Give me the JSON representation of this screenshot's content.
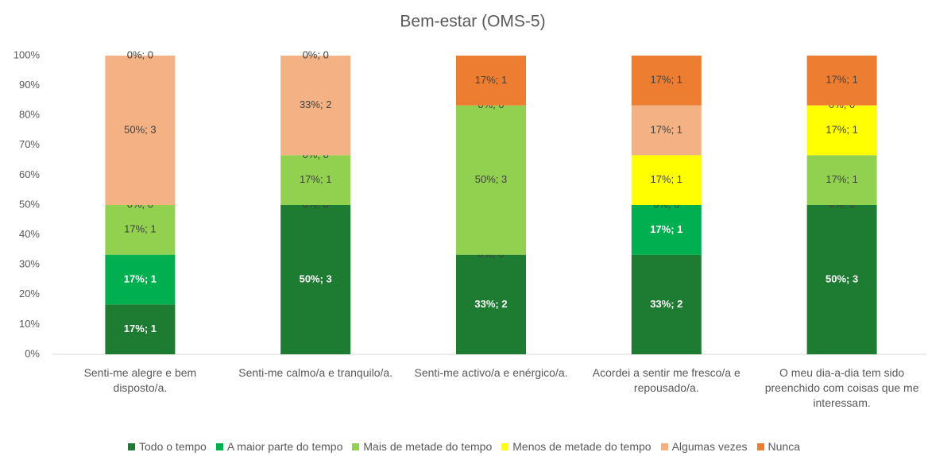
{
  "chart_data": {
    "type": "stacked_bar",
    "title": "Bem-estar (OMS-5)",
    "categories": [
      "Senti-me alegre e bem disposto/a.",
      "Senti-me calmo/a e tranquilo/a.",
      "Senti-me activo/a e enérgico/a.",
      "Acordei a sentir  me fresco/a e repousado/a.",
      "O meu dia-a-dia tem sido preenchido com coisas que me interessam."
    ],
    "series": [
      {
        "name": "Todo o tempo",
        "color": "#1e7b32",
        "values": [
          16.67,
          50,
          33.33,
          33.33,
          50
        ],
        "value_labels": [
          "17%; 1",
          "50%; 3",
          "33%; 2",
          "33%; 2",
          "50%; 3"
        ]
      },
      {
        "name": "A maior parte do tempo",
        "color": "#00b050",
        "values": [
          16.67,
          0,
          0,
          16.67,
          0
        ],
        "value_labels": [
          "17%; 1",
          "0%; 0",
          "0%; 0",
          "17%; 1",
          "0%; 0"
        ]
      },
      {
        "name": "Mais de metade do tempo",
        "color": "#92d050",
        "values": [
          16.67,
          16.67,
          50,
          0,
          16.67
        ],
        "value_labels": [
          "17%; 1",
          "17%; 1",
          "50%; 3",
          "0%; 0",
          "17%; 1"
        ]
      },
      {
        "name": "Menos de metade do tempo",
        "color": "#ffff00",
        "values": [
          0,
          0,
          0,
          16.67,
          16.67
        ],
        "value_labels": [
          "0%; 0",
          "0%; 0",
          null,
          "17%; 1",
          "17%; 1"
        ]
      },
      {
        "name": "Algumas vezes",
        "color": "#f4b183",
        "values": [
          50,
          33.33,
          0,
          16.67,
          0
        ],
        "value_labels": [
          "50%; 3",
          "33%; 2",
          "0%; 0",
          "17%; 1",
          "0%; 0"
        ]
      },
      {
        "name": "Nunca",
        "color": "#ed7d31",
        "values": [
          0,
          0,
          16.67,
          16.67,
          16.67
        ],
        "value_labels": [
          "0%; 0",
          "0%; 0",
          "17%; 1",
          "17%; 1",
          "17%; 1"
        ]
      }
    ],
    "ylim": [
      0,
      100
    ],
    "yticks": [
      {
        "value": 0,
        "label": "0%"
      },
      {
        "value": 10,
        "label": "10%"
      },
      {
        "value": 20,
        "label": "20%"
      },
      {
        "value": 30,
        "label": "30%"
      },
      {
        "value": 40,
        "label": "40%"
      },
      {
        "value": 50,
        "label": "50%"
      },
      {
        "value": 60,
        "label": "60%"
      },
      {
        "value": 70,
        "label": "70%"
      },
      {
        "value": 80,
        "label": "80%"
      },
      {
        "value": 90,
        "label": "90%"
      },
      {
        "value": 100,
        "label": "100%"
      }
    ],
    "grid": false
  }
}
